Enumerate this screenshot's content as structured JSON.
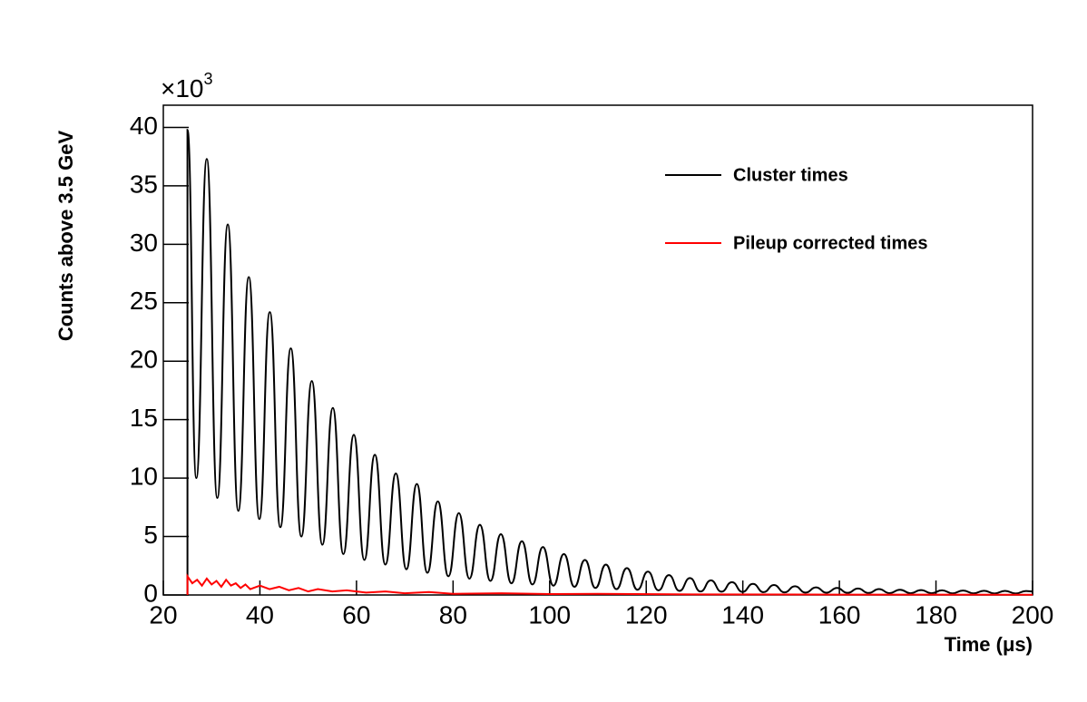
{
  "chart_data": {
    "type": "line",
    "x_label": "Time (μs)",
    "y_label": "Counts above 3.5 GeV",
    "y_multiplier": {
      "base": "×10",
      "exponent": "3"
    },
    "xlim": [
      20,
      200
    ],
    "xticks": [
      20,
      40,
      60,
      80,
      100,
      120,
      140,
      160,
      180,
      200
    ],
    "ylim": [
      0,
      41.9
    ],
    "yticks": [
      0,
      5,
      10,
      15,
      20,
      25,
      30,
      35,
      40
    ],
    "legend": "top-right",
    "series": [
      {
        "name": "Cluster times",
        "color": "#000000",
        "x": [
          25,
          25,
          26.83,
          29.0,
          31.18,
          33.35,
          35.53,
          37.7,
          39.88,
          42.05,
          44.23,
          46.4,
          48.58,
          50.75,
          52.93,
          55.1,
          57.28,
          59.45,
          61.63,
          63.8,
          65.98,
          68.15,
          70.33,
          72.5,
          74.68,
          76.85,
          79.03,
          81.2,
          83.38,
          85.55,
          87.73,
          89.9,
          92.08,
          94.25,
          96.43,
          98.6,
          100.78,
          102.95,
          105.13,
          107.3,
          109.48,
          111.65,
          113.83,
          116.0,
          118.18,
          120.35,
          122.53,
          124.7,
          126.88,
          129.05,
          131.23,
          133.4,
          135.58,
          137.75,
          139.93,
          142.1,
          144.28,
          146.45,
          148.63,
          150.8,
          152.98,
          155.15,
          157.33,
          159.5,
          161.68,
          163.85,
          166.03,
          168.2,
          170.38,
          172.55,
          174.73,
          176.9,
          179.08,
          181.25,
          183.43,
          185.6,
          187.78,
          189.95,
          192.13,
          194.3,
          196.48,
          198.65,
          200
        ],
        "values": [
          0,
          39.8,
          10.0,
          37.3,
          8.3,
          31.7,
          7.2,
          27.2,
          6.5,
          24.2,
          5.8,
          21.1,
          5.0,
          18.3,
          4.3,
          16.0,
          3.5,
          13.7,
          3.0,
          12.0,
          2.6,
          10.4,
          2.2,
          9.5,
          1.9,
          8.0,
          1.6,
          7.0,
          1.4,
          6.0,
          1.2,
          5.2,
          1.0,
          4.6,
          0.9,
          4.1,
          0.8,
          3.5,
          0.7,
          3.0,
          0.6,
          2.6,
          0.5,
          2.3,
          0.45,
          2.0,
          0.4,
          1.7,
          0.35,
          1.45,
          0.3,
          1.25,
          0.28,
          1.1,
          0.26,
          0.95,
          0.24,
          0.85,
          0.22,
          0.75,
          0.2,
          0.65,
          0.19,
          0.6,
          0.18,
          0.55,
          0.17,
          0.5,
          0.16,
          0.45,
          0.15,
          0.42,
          0.15,
          0.4,
          0.14,
          0.38,
          0.14,
          0.36,
          0.13,
          0.35,
          0.13,
          0.34,
          0.3
        ]
      },
      {
        "name": "Pileup corrected times",
        "color": "#ff0000",
        "x": [
          25,
          25,
          26,
          27,
          28,
          29,
          30,
          31,
          32,
          33,
          34,
          35,
          36,
          37,
          38,
          40,
          42,
          44,
          46,
          48,
          50,
          52,
          55,
          58,
          62,
          66,
          70,
          75,
          80,
          90,
          100,
          110,
          130,
          160,
          200
        ],
        "values": [
          0,
          1.6,
          1.0,
          1.3,
          0.8,
          1.4,
          0.9,
          1.2,
          0.7,
          1.3,
          0.8,
          1.0,
          0.6,
          0.9,
          0.5,
          0.8,
          0.5,
          0.7,
          0.4,
          0.6,
          0.3,
          0.5,
          0.3,
          0.4,
          0.2,
          0.3,
          0.15,
          0.25,
          0.1,
          0.15,
          0.08,
          0.1,
          0.05,
          0.03,
          0.02
        ]
      }
    ]
  }
}
